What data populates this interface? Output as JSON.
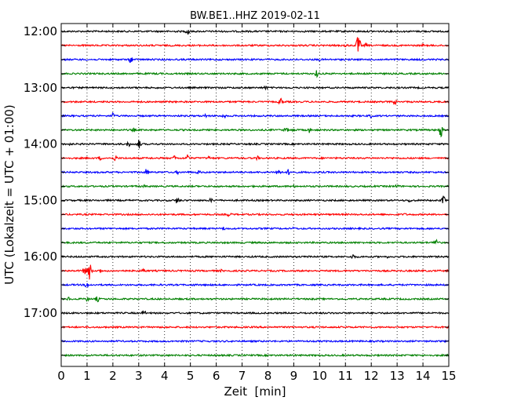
{
  "chart_data": {
    "type": "line",
    "title": "BW.BE1..HHZ 2019-02-11",
    "xlabel": "Zeit  [min]",
    "ylabel": "UTC (Lokalzeit = UTC + 01:00)",
    "xlim": [
      0,
      15
    ],
    "x_ticks": [
      "0",
      "1",
      "2",
      "3",
      "4",
      "5",
      "6",
      "7",
      "8",
      "9",
      "10",
      "11",
      "12",
      "13",
      "14",
      "15"
    ],
    "x_grid": true,
    "series_colors": [
      "#000000",
      "#ff0000",
      "#0000ff",
      "#008000"
    ],
    "rows": [
      {
        "label": "12:00",
        "color": "#000000",
        "events": [
          [
            4.9,
            5
          ]
        ]
      },
      {
        "label": "",
        "color": "#ff0000",
        "events": [
          [
            11.0,
            3
          ],
          [
            11.5,
            14
          ],
          [
            11.8,
            3
          ],
          [
            14.0,
            2
          ]
        ]
      },
      {
        "label": "",
        "color": "#0000ff",
        "events": [
          [
            2.7,
            5
          ],
          [
            10.0,
            2
          ]
        ]
      },
      {
        "label": "",
        "color": "#008000",
        "events": [
          [
            3.8,
            2
          ],
          [
            9.9,
            5
          ]
        ]
      },
      {
        "label": "13:00",
        "color": "#000000",
        "events": [
          [
            7.9,
            3
          ]
        ]
      },
      {
        "label": "",
        "color": "#ff0000",
        "events": [
          [
            8.5,
            6
          ],
          [
            12.9,
            4
          ]
        ]
      },
      {
        "label": "",
        "color": "#0000ff",
        "events": [
          [
            2.0,
            5
          ],
          [
            5.6,
            3
          ],
          [
            6.3,
            3
          ],
          [
            12.0,
            3
          ]
        ]
      },
      {
        "label": "",
        "color": "#008000",
        "events": [
          [
            1.5,
            2
          ],
          [
            2.8,
            3
          ],
          [
            8.7,
            4
          ],
          [
            9.0,
            3
          ],
          [
            9.6,
            4
          ],
          [
            14.7,
            10
          ]
        ]
      },
      {
        "label": "14:00",
        "color": "#000000",
        "events": [
          [
            0.3,
            3
          ],
          [
            2.6,
            4
          ],
          [
            3.0,
            7
          ]
        ]
      },
      {
        "label": "",
        "color": "#ff0000",
        "events": [
          [
            1.5,
            3
          ],
          [
            2.1,
            4
          ],
          [
            4.4,
            4
          ],
          [
            4.9,
            5
          ],
          [
            5.7,
            3
          ],
          [
            7.6,
            3
          ]
        ]
      },
      {
        "label": "",
        "color": "#0000ff",
        "events": [
          [
            3.3,
            5
          ],
          [
            4.5,
            3
          ],
          [
            5.3,
            4
          ],
          [
            8.4,
            7
          ],
          [
            8.8,
            4
          ]
        ]
      },
      {
        "label": "",
        "color": "#008000",
        "events": [
          [
            3.2,
            2
          ],
          [
            9.0,
            2
          ],
          [
            13.0,
            3
          ]
        ]
      },
      {
        "label": "15:00",
        "color": "#000000",
        "events": [
          [
            4.5,
            5
          ],
          [
            5.8,
            3
          ],
          [
            13.5,
            3
          ],
          [
            14.8,
            6
          ]
        ]
      },
      {
        "label": "",
        "color": "#ff0000",
        "events": [
          [
            6.5,
            4
          ],
          [
            13.3,
            2
          ]
        ]
      },
      {
        "label": "",
        "color": "#0000ff",
        "events": [
          [
            6.3,
            3
          ],
          [
            9.0,
            2
          ]
        ]
      },
      {
        "label": "",
        "color": "#008000",
        "events": [
          [
            14.5,
            7
          ]
        ]
      },
      {
        "label": "16:00",
        "color": "#000000",
        "events": [
          [
            9.6,
            3
          ],
          [
            11.3,
            4
          ],
          [
            12.6,
            2
          ]
        ]
      },
      {
        "label": "",
        "color": "#ff0000",
        "events": [
          [
            0.9,
            5
          ],
          [
            1.1,
            12
          ],
          [
            1.5,
            3
          ],
          [
            2.4,
            3
          ],
          [
            3.2,
            4
          ],
          [
            6.2,
            2
          ]
        ]
      },
      {
        "label": "",
        "color": "#0000ff",
        "events": [
          [
            1.0,
            5
          ],
          [
            5.1,
            2
          ]
        ]
      },
      {
        "label": "",
        "color": "#008000",
        "events": [
          [
            0.3,
            3
          ],
          [
            1.0,
            3
          ],
          [
            1.4,
            4
          ]
        ]
      },
      {
        "label": "17:00",
        "color": "#000000",
        "events": [
          [
            3.2,
            4
          ]
        ]
      },
      {
        "label": "",
        "color": "#ff0000",
        "events": []
      },
      {
        "label": "",
        "color": "#0000ff",
        "events": []
      },
      {
        "label": "",
        "color": "#008000",
        "events": []
      }
    ]
  }
}
